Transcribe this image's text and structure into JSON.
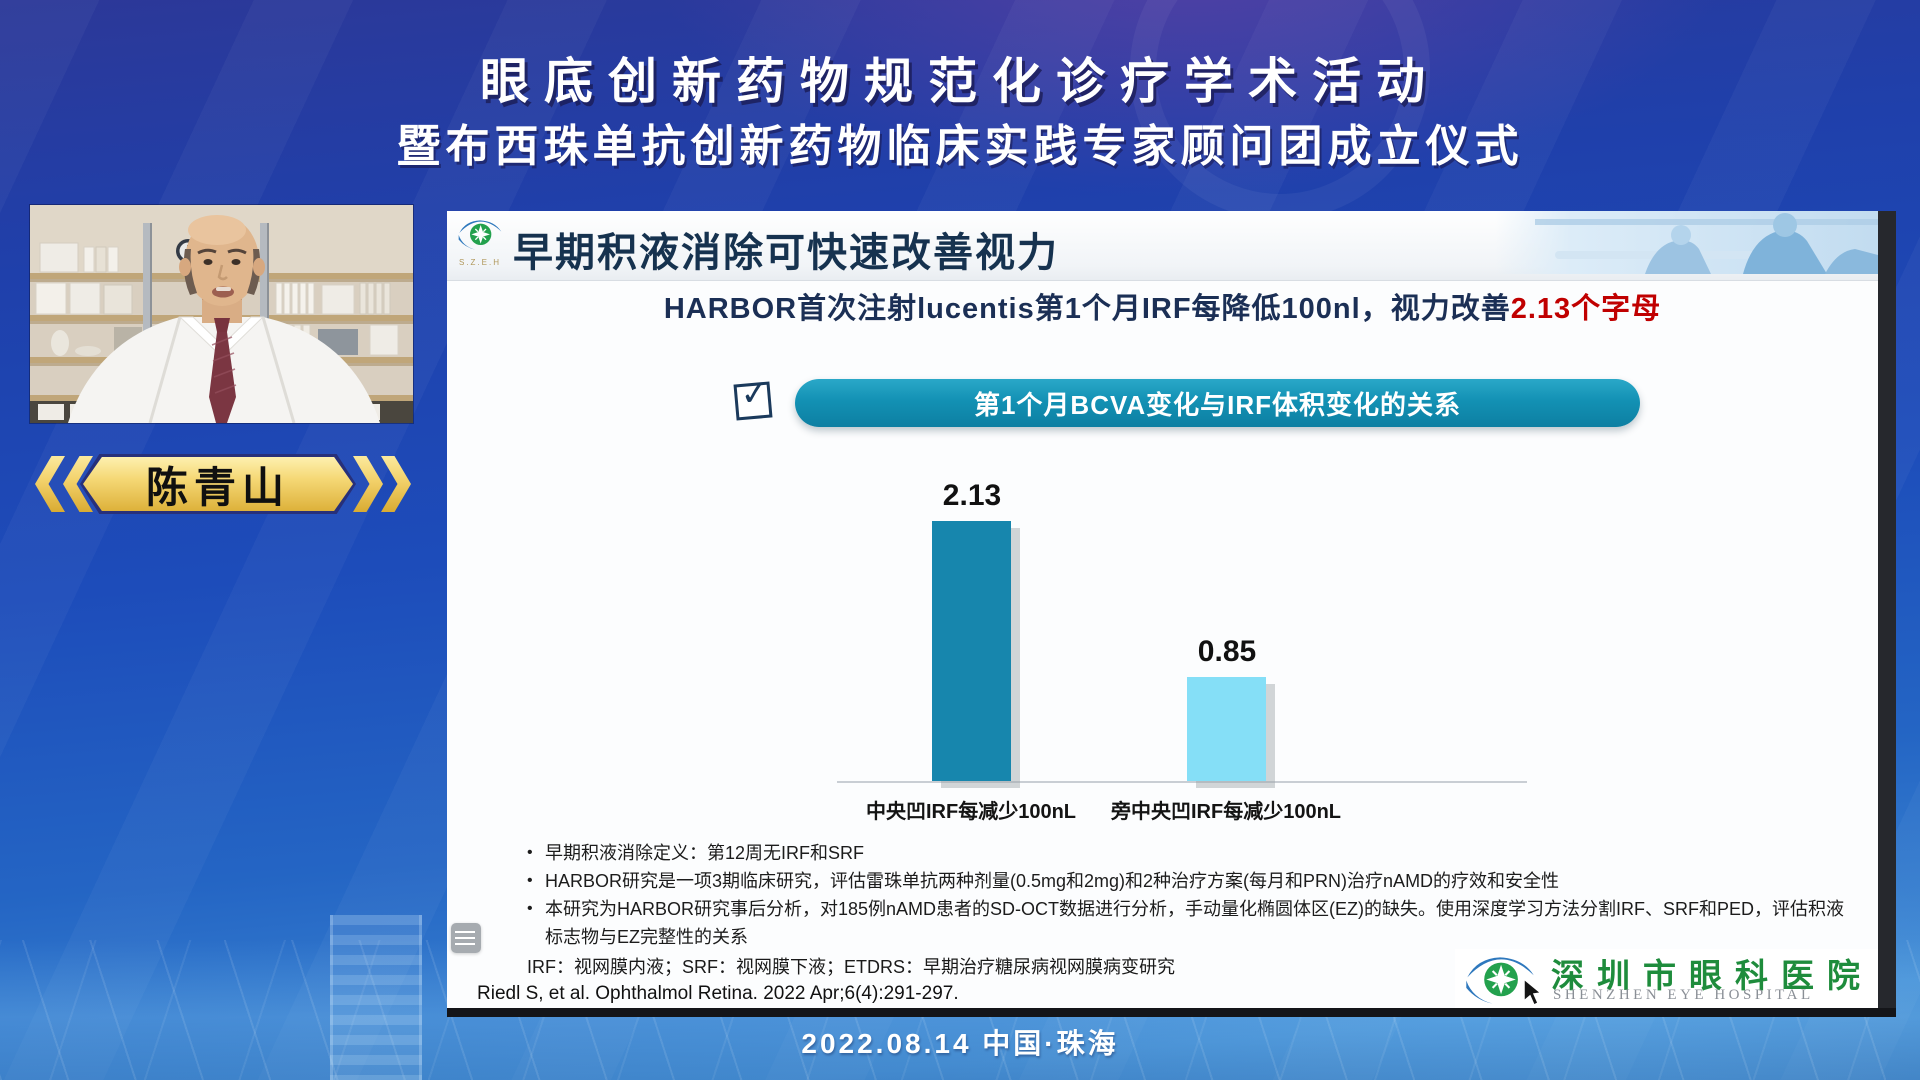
{
  "event": {
    "title_line1": "眼底创新药物规范化诊疗学术活动",
    "title_line2": "暨布西珠单抗创新药物临床实践专家顾问团成立仪式",
    "date_location": "2022.08.14  中国·珠海"
  },
  "speaker": {
    "name": "陈青山"
  },
  "slide": {
    "logo_abbr": "S.Z.E.H",
    "title": "早期积液消除可快速改善视力",
    "subtitle_main": "HARBOR首次注射lucentis第1个月IRF每降低100nl，视力改善",
    "subtitle_highlight": "2.13个字母",
    "banner": "第1个月BCVA变化与IRF体积变化的关系",
    "notes": [
      "早期积液消除定义：第12周无IRF和SRF",
      "HARBOR研究是一项3期临床研究，评估雷珠单抗两种剂量(0.5mg和2mg)和2种治疗方案(每月和PRN)治疗nAMD的疗效和安全性",
      "本研究为HARBOR研究事后分析，对185例nAMD患者的SD-OCT数据进行分析，手动量化椭圆体区(EZ)的缺失。使用深度学习方法分割IRF、SRF和PED，评估积液标志物与EZ完整性的关系"
    ],
    "footnote": "IRF：视网膜内液；SRF：视网膜下液；ETDRS：早期治疗糖尿病视网膜病变研究",
    "citation": "Riedl S, et al. Ophthalmol Retina. 2022 Apr;6(4):291-297.",
    "hospital_cn": "深圳市眼科医院",
    "hospital_en": "SHENZHEN EYE HOSPITAL"
  },
  "chart_data": {
    "type": "bar",
    "title": "第1个月BCVA变化与IRF体积变化的关系",
    "categories": [
      "中央凹IRF每减少100nL",
      "旁中央凹IRF每减少100nL"
    ],
    "values": [
      2.13,
      0.85
    ],
    "value_labels": [
      "2.13",
      "0.85"
    ],
    "colors": [
      "#1786ad",
      "#85dff7"
    ],
    "ylim": [
      0,
      2.4
    ],
    "grid": false,
    "legend": false,
    "data_labels": true
  },
  "colors": {
    "banner_teal": "#1391b4",
    "highlight_red": "#c00000",
    "title_navy": "#16324f",
    "gold": "#f2d069",
    "hospital_green": "#1e8c3c"
  }
}
